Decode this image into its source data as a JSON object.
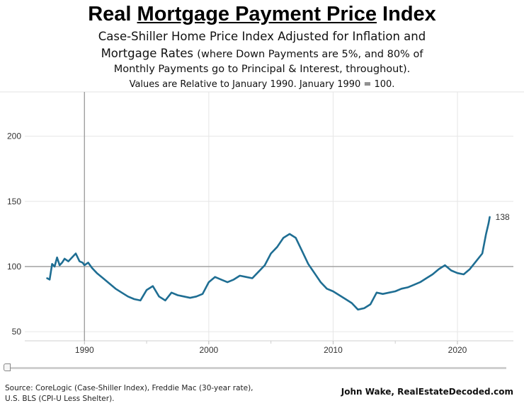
{
  "title": {
    "prefix": "Real",
    "underlined": "Mortgage Payment Price",
    "suffix": "Index"
  },
  "subtitle": {
    "line1": "Case-Shiller Home Price Index Adjusted for Inflation and",
    "line2_main": "Mortgage Rates",
    "line2_small": "(where Down Payments are 5%, and 80% of",
    "line3": "Monthly Payments go to Principal & Interest, throughout).",
    "line4": "Values are Relative to January 1990. January 1990 = 100."
  },
  "footer": {
    "source_line1": "Source: CoreLogic (Case-Shiller Index), Freddie Mac (30-year rate),",
    "source_line2": "U.S. BLS (CPI-U Less Shelter).",
    "credit": "John Wake, RealEstateDecoded.com"
  },
  "colors": {
    "line": "#1f6e93",
    "reference_line": "#9a9a9a",
    "grid": "#e6e6e6"
  },
  "chart_data": {
    "type": "line",
    "title": "Real Mortgage Payment Price Index",
    "xlabel": "",
    "ylabel": "",
    "xlim": [
      1985.2,
      2024.5
    ],
    "ylim": [
      43,
      234
    ],
    "xticks": [
      1990,
      2000,
      2010,
      2020
    ],
    "yticks": [
      50,
      100,
      150,
      200
    ],
    "reference_lines": {
      "x": 1990,
      "y": 100
    },
    "end_label": "138",
    "series": [
      {
        "name": "Real Mortgage Payment Price Index",
        "x": [
          1987.0,
          1987.2,
          1987.4,
          1987.6,
          1987.8,
          1988.0,
          1988.2,
          1988.4,
          1988.7,
          1989.0,
          1989.3,
          1989.6,
          1989.85,
          1990.0,
          1990.3,
          1990.6,
          1991.0,
          1991.5,
          1992.0,
          1992.5,
          1993.0,
          1993.5,
          1994.0,
          1994.5,
          1995.0,
          1995.5,
          1996.0,
          1996.5,
          1997.0,
          1997.5,
          1998.0,
          1998.5,
          1999.0,
          1999.5,
          2000.0,
          2000.5,
          2001.0,
          2001.5,
          2002.0,
          2002.5,
          2003.0,
          2003.5,
          2004.0,
          2004.5,
          2005.0,
          2005.5,
          2006.0,
          2006.5,
          2007.0,
          2007.5,
          2008.0,
          2008.5,
          2009.0,
          2009.5,
          2010.0,
          2010.5,
          2011.0,
          2011.5,
          2012.0,
          2012.5,
          2013.0,
          2013.5,
          2014.0,
          2014.5,
          2015.0,
          2015.5,
          2016.0,
          2016.5,
          2017.0,
          2017.5,
          2018.0,
          2018.5,
          2019.0,
          2019.5,
          2020.0,
          2020.5,
          2021.0,
          2021.5,
          2022.0,
          2022.3,
          2022.5,
          2022.6
        ],
        "values": [
          91,
          90,
          102,
          100,
          107,
          101,
          103,
          106,
          104,
          107,
          110,
          104,
          103,
          101,
          103,
          99,
          95,
          91,
          87,
          83,
          80,
          77,
          75,
          74,
          82,
          85,
          77,
          74,
          80,
          78,
          77,
          76,
          77,
          79,
          88,
          92,
          90,
          88,
          90,
          93,
          92,
          91,
          96,
          101,
          110,
          115,
          122,
          125,
          122,
          112,
          102,
          95,
          88,
          83,
          81,
          78,
          75,
          72,
          67,
          68,
          71,
          80,
          79,
          80,
          81,
          83,
          84,
          86,
          88,
          91,
          94,
          98,
          101,
          97,
          95,
          94,
          98,
          104,
          110,
          125,
          133,
          138
        ]
      }
    ]
  }
}
